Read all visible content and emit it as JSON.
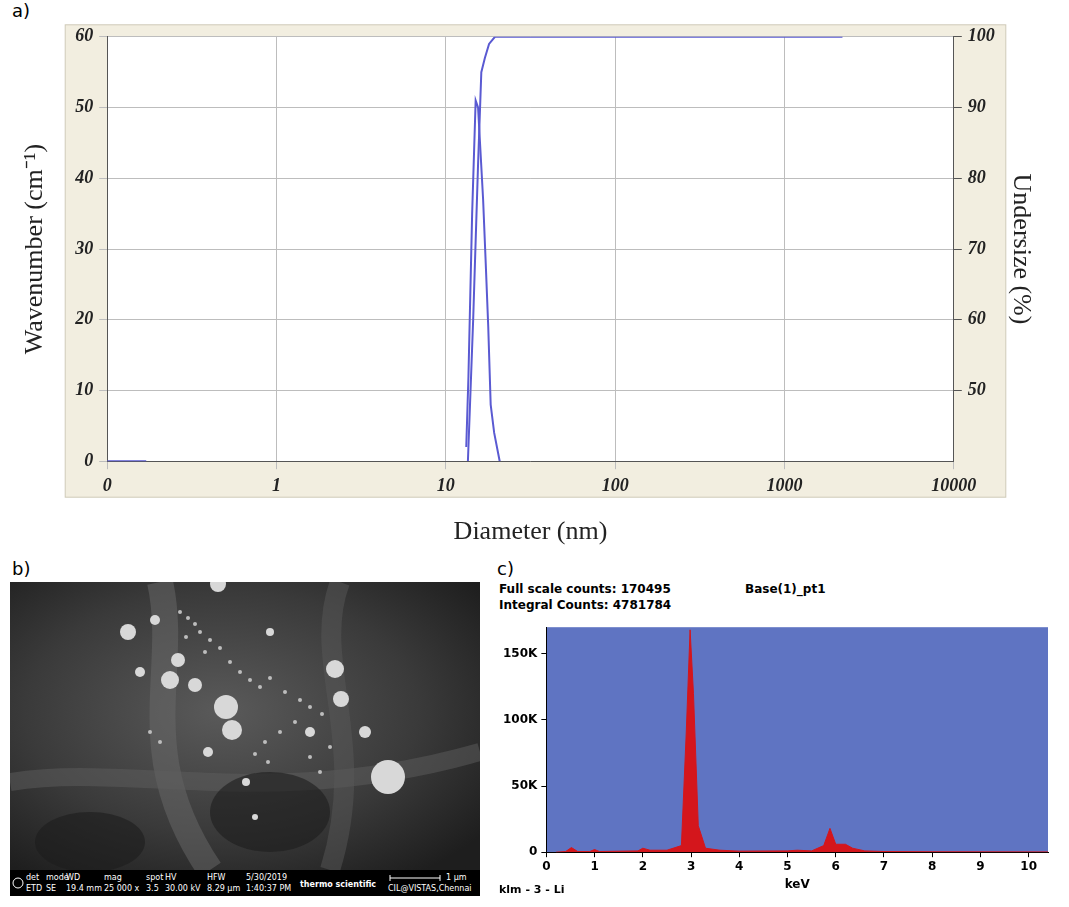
{
  "chart_data": [
    {
      "type": "line",
      "panel_label": "a)",
      "xlabel": "Diameter (nm)",
      "ylabel": "Wavenumber (cm⁻¹)",
      "y2label": "Undersize (%)",
      "log": "x",
      "grid": true,
      "xlim": [
        0.1,
        10000
      ],
      "xticks": [
        {
          "value": 0.1,
          "label": "0"
        },
        1,
        10,
        100,
        1000,
        10000
      ],
      "ylim": [
        0,
        60
      ],
      "yticks": [
        0,
        10,
        20,
        30,
        40,
        50,
        60
      ],
      "y2lim": [
        40,
        100
      ],
      "y2ticks": [
        50,
        60,
        70,
        80,
        90,
        100
      ],
      "series": [
        {
          "color": "#5a5ad2",
          "x": [
            0.1,
            0.17,
            1,
            13.2,
            13.6,
            14.3,
            15,
            15.5,
            16,
            16.6,
            17.2,
            17.8,
            18.4,
            19.3,
            20.8
          ],
          "values": [
            0,
            0,
            null,
            2,
            12,
            35,
            51,
            50,
            44,
            37,
            28,
            19,
            8,
            4,
            0
          ]
        },
        {
          "color": "#5a5ad2",
          "axis": "y2",
          "x": [
            13.5,
            14.5,
            15.5,
            16.2,
            17,
            18,
            19.5,
            2200
          ],
          "values": [
            40,
            60,
            82,
            95,
            97,
            99,
            100,
            100
          ]
        }
      ]
    },
    {
      "type": "area",
      "panel_label": "c)",
      "title": "Base(1)_pt1",
      "header": [
        "Full scale counts: 170495",
        "Integral Counts: 4781784"
      ],
      "footer": "klm - 3 - Li",
      "xlabel": "keV",
      "grid": false,
      "color": "#d4161c",
      "xlim": [
        0,
        10.4
      ],
      "xticks": [
        0,
        1,
        2,
        3,
        4,
        5,
        6,
        7,
        8,
        9,
        10
      ],
      "ylim": [
        0,
        170000
      ],
      "yticks": [
        0,
        {
          "value": 50000,
          "label": "50K"
        },
        {
          "value": 100000,
          "label": "100K"
        },
        {
          "value": 150000,
          "label": "150K"
        }
      ],
      "x": [
        0.2,
        0.4,
        0.52,
        0.65,
        0.9,
        1.0,
        1.1,
        1.9,
        2.0,
        2.15,
        2.5,
        2.8,
        2.9,
        2.98,
        3.05,
        3.15,
        3.3,
        3.6,
        4.0,
        5.0,
        5.2,
        5.5,
        5.75,
        5.88,
        6.0,
        6.2,
        6.35,
        6.6,
        7.0,
        8.0,
        10.4
      ],
      "values": [
        0,
        500,
        3500,
        500,
        500,
        2000,
        500,
        1000,
        3000,
        1500,
        1500,
        5000,
        90000,
        168000,
        120000,
        20000,
        3000,
        1500,
        800,
        1000,
        1500,
        1000,
        5000,
        18000,
        6000,
        6000,
        3000,
        1000,
        500,
        300,
        200
      ]
    }
  ],
  "sem_image": {
    "panel_label": "b)",
    "info_bar": [
      {
        "label": "det",
        "value": "ETD"
      },
      {
        "label": "mode",
        "value": "SE"
      },
      {
        "label": "WD",
        "value": "19.4 mm"
      },
      {
        "label": "mag",
        "value": "25 000 x"
      },
      {
        "label": "spot",
        "value": "3.5"
      },
      {
        "label": "HV",
        "value": "30.00 kV"
      },
      {
        "label": "HFW",
        "value": "8.29 µm"
      }
    ],
    "date": "5/30/2019",
    "time": "1:40:37 PM",
    "brand": "thermo scientific",
    "scale_bar": "1 µm",
    "lab": "CIL@VISTAS,Chennai"
  }
}
